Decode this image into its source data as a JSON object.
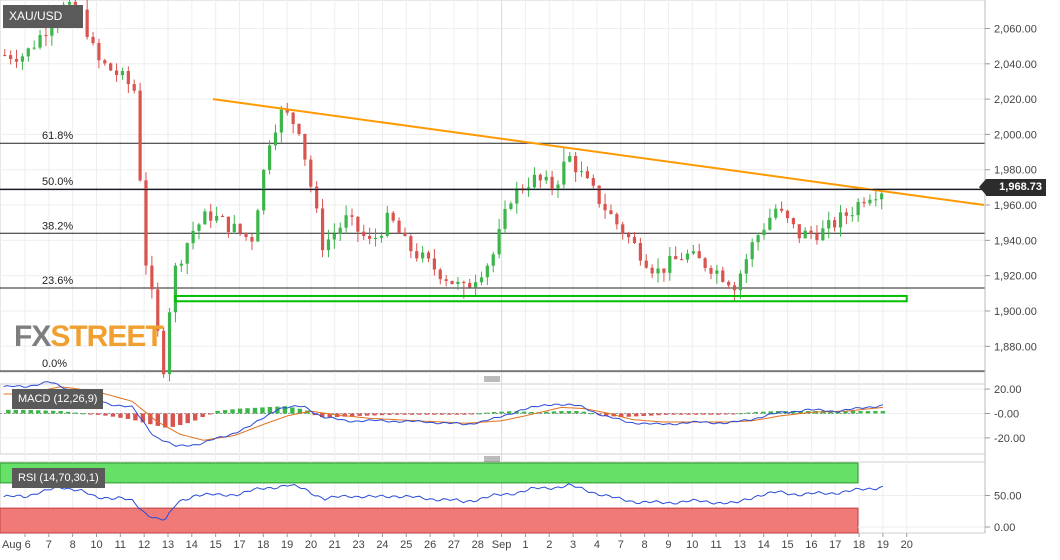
{
  "symbol": "XAU/USD",
  "last_price_label": "1,968.73",
  "logo": {
    "part1": "FX",
    "part2": "STREET"
  },
  "colors": {
    "up": "#3cb54a",
    "down": "#d9534f",
    "trend": "#ff9900",
    "support": "#00c000",
    "macd_line": "#2a4bd7",
    "signal_line": "#e07020",
    "rsi_line": "#2a4bd7"
  },
  "chart_data": [
    {
      "type": "candlestick",
      "title": "XAU/USD",
      "y_range": [
        1866,
        2075
      ],
      "y_ticks": [
        "2,060.00",
        "2,040.00",
        "2,020.00",
        "2,000.00",
        "1,980.00",
        "1,960.00",
        "1,940.00",
        "1,920.00",
        "1,900.00",
        "1,880.00"
      ],
      "y_tick_values": [
        2060,
        2040,
        2020,
        2000,
        1980,
        1960,
        1940,
        1920,
        1900,
        1880
      ],
      "x_labels": [
        "Aug 6",
        "7",
        "8",
        "10",
        "11",
        "12",
        "13",
        "14",
        "15",
        "17",
        "18",
        "19",
        "20",
        "21",
        "23",
        "24",
        "25",
        "26",
        "27",
        "28",
        "Sep",
        "1",
        "2",
        "3",
        "4",
        "7",
        "8",
        "9",
        "10",
        "11",
        "13",
        "14",
        "15",
        "16",
        "17",
        "18",
        "19",
        "20"
      ],
      "fib_levels": [
        {
          "label": "61.8%",
          "value": 1995
        },
        {
          "label": "50.0%",
          "value": 1969
        },
        {
          "label": "38.2%",
          "value": 1944
        },
        {
          "label": "23.6%",
          "value": 1913
        },
        {
          "label": "0.0%",
          "value": 1866
        }
      ],
      "trendline": [
        [
          1.5,
          2020
        ],
        [
          11.5,
          1960
        ]
      ],
      "support_zone": {
        "x": [
          6.3,
          37.0
        ],
        "y": [
          1905.5,
          1908.5
        ]
      },
      "anchors": [
        [
          0,
          2045
        ],
        [
          1,
          2062
        ],
        [
          1.6,
          2072
        ],
        [
          2.4,
          2068
        ],
        [
          3,
          2042
        ],
        [
          4,
          2033
        ],
        [
          4.6,
          2025
        ],
        [
          5.05,
          1930
        ],
        [
          5.4,
          1902
        ],
        [
          5.8,
          1866
        ],
        [
          6.2,
          1920
        ],
        [
          7,
          1945
        ],
        [
          7.7,
          1955
        ],
        [
          8.6,
          1948
        ],
        [
          9.5,
          1940
        ],
        [
          10.3,
          2000
        ],
        [
          10.8,
          2013
        ],
        [
          11.5,
          2004
        ],
        [
          12.5,
          1937
        ],
        [
          13.5,
          1952
        ],
        [
          14.5,
          1938
        ],
        [
          15.3,
          1953
        ],
        [
          16,
          1937
        ],
        [
          17,
          1926
        ],
        [
          18.4,
          1912
        ],
        [
          19.6,
          1930
        ],
        [
          20.4,
          1965
        ],
        [
          21.3,
          1975
        ],
        [
          22.2,
          1970
        ],
        [
          22.8,
          1988
        ],
        [
          23.6,
          1972
        ],
        [
          24.8,
          1950
        ],
        [
          25.7,
          1935
        ],
        [
          26.5,
          1922
        ],
        [
          27.7,
          1932
        ],
        [
          28.8,
          1925
        ],
        [
          29.8,
          1915
        ],
        [
          30.6,
          1940
        ],
        [
          31.5,
          1958
        ],
        [
          32.5,
          1943
        ],
        [
          33.5,
          1945
        ],
        [
          34.7,
          1957
        ],
        [
          35.3,
          1966
        ],
        [
          36,
          1969
        ]
      ],
      "extremes": [
        [
          1.6,
          2072
        ],
        [
          5.8,
          1866
        ],
        [
          11,
          2015
        ],
        [
          18.3,
          1907
        ],
        [
          22.6,
          1993
        ],
        [
          29.8,
          1906
        ]
      ]
    },
    {
      "type": "bar",
      "title": "MACD (12,26,9)",
      "y_range": [
        -30,
        30
      ],
      "y_ticks": [
        "20.00",
        "-0.00",
        "-20.00"
      ],
      "y_tick_values": [
        20,
        0,
        -20
      ],
      "macd_anchors": [
        [
          0,
          22
        ],
        [
          1,
          26
        ],
        [
          2,
          18
        ],
        [
          3.5,
          8
        ],
        [
          4.5,
          5
        ],
        [
          5.4,
          -18
        ],
        [
          6.3,
          -27
        ],
        [
          7.3,
          -25
        ],
        [
          8.5,
          -18
        ],
        [
          9.5,
          -10
        ],
        [
          10.6,
          4
        ],
        [
          11.7,
          6
        ],
        [
          12.5,
          -3
        ],
        [
          13.5,
          -6
        ],
        [
          15,
          -6
        ],
        [
          17,
          -7
        ],
        [
          18.5,
          -9
        ],
        [
          19.8,
          -4
        ],
        [
          20.8,
          3
        ],
        [
          22.2,
          8
        ],
        [
          23.3,
          6
        ],
        [
          24.3,
          -2
        ],
        [
          25.3,
          -7
        ],
        [
          26.5,
          -9
        ],
        [
          27.5,
          -8
        ],
        [
          28.5,
          -7
        ],
        [
          29.5,
          -8
        ],
        [
          30.4,
          -5
        ],
        [
          31.5,
          0
        ],
        [
          32.8,
          3
        ],
        [
          34,
          2
        ],
        [
          35,
          4
        ],
        [
          36,
          7
        ]
      ],
      "signal_anchors": [
        [
          0,
          16
        ],
        [
          1.5,
          22
        ],
        [
          3,
          18
        ],
        [
          4.5,
          10
        ],
        [
          5.5,
          -6
        ],
        [
          6.5,
          -17
        ],
        [
          7.5,
          -22
        ],
        [
          8.8,
          -18
        ],
        [
          10,
          -9
        ],
        [
          11,
          -2
        ],
        [
          12,
          2
        ],
        [
          13,
          -1
        ],
        [
          14.5,
          -4
        ],
        [
          16.5,
          -6
        ],
        [
          18.5,
          -8
        ],
        [
          20,
          -6
        ],
        [
          21.2,
          -1
        ],
        [
          22.5,
          5
        ],
        [
          23.5,
          4
        ],
        [
          24.5,
          0
        ],
        [
          25.5,
          -5
        ],
        [
          26.8,
          -7
        ],
        [
          28,
          -7
        ],
        [
          29.5,
          -7
        ],
        [
          30.5,
          -6
        ],
        [
          31.7,
          -2
        ],
        [
          33,
          1
        ],
        [
          34.5,
          2
        ],
        [
          36,
          5
        ]
      ],
      "histogram_anchors": [
        [
          0,
          3
        ],
        [
          1.5,
          2
        ],
        [
          2.5,
          0
        ],
        [
          3.5,
          -2
        ],
        [
          4.5,
          -5
        ],
        [
          5.3,
          -9
        ],
        [
          6,
          -12
        ],
        [
          7,
          -7
        ],
        [
          8,
          2
        ],
        [
          9,
          4
        ],
        [
          10,
          5
        ],
        [
          10.9,
          6
        ],
        [
          11.8,
          3
        ],
        [
          12.3,
          -3
        ],
        [
          13,
          -3
        ],
        [
          14,
          -2
        ],
        [
          15.5,
          -1
        ],
        [
          17,
          -1
        ],
        [
          18.5,
          -1
        ],
        [
          19.5,
          1
        ],
        [
          20.5,
          2
        ],
        [
          21.5,
          1
        ],
        [
          22.5,
          2
        ],
        [
          23.3,
          2
        ],
        [
          24.1,
          -1
        ],
        [
          25,
          -3
        ],
        [
          26,
          -2
        ],
        [
          27,
          -1
        ],
        [
          28.2,
          -1
        ],
        [
          29.3,
          -1
        ],
        [
          30.5,
          1
        ],
        [
          31.5,
          2
        ],
        [
          33,
          2
        ],
        [
          34.5,
          2
        ],
        [
          36,
          2
        ]
      ]
    },
    {
      "type": "line",
      "title": "RSI (14,70,30,1)",
      "y_range": [
        0,
        100
      ],
      "y_ticks": [
        "50.00",
        "0.00"
      ],
      "y_tick_values": [
        50,
        0
      ],
      "overbought": 70,
      "oversold": 30,
      "rsi_anchors": [
        [
          0,
          48
        ],
        [
          0.5,
          55
        ],
        [
          1.5,
          62
        ],
        [
          2.3,
          60
        ],
        [
          3,
          45
        ],
        [
          4,
          48
        ],
        [
          4.5,
          40
        ],
        [
          5,
          22
        ],
        [
          5.5,
          15
        ],
        [
          5.9,
          12
        ],
        [
          6.4,
          38
        ],
        [
          7.2,
          52
        ],
        [
          8.2,
          50
        ],
        [
          9,
          53
        ],
        [
          10.1,
          62
        ],
        [
          11,
          66
        ],
        [
          11.7,
          61
        ],
        [
          12.6,
          44
        ],
        [
          13.6,
          50
        ],
        [
          14.6,
          47
        ],
        [
          15.5,
          50
        ],
        [
          16.5,
          46
        ],
        [
          17.5,
          44
        ],
        [
          18.4,
          40
        ],
        [
          19.5,
          48
        ],
        [
          20.5,
          54
        ],
        [
          21.3,
          60
        ],
        [
          22.2,
          63
        ],
        [
          22.8,
          66
        ],
        [
          23.6,
          58
        ],
        [
          24.8,
          45
        ],
        [
          25.7,
          40
        ],
        [
          26.7,
          38
        ],
        [
          27.8,
          41
        ],
        [
          28.8,
          40
        ],
        [
          29.8,
          37
        ],
        [
          30.7,
          50
        ],
        [
          31.6,
          55
        ],
        [
          32.5,
          52
        ],
        [
          33.5,
          53
        ],
        [
          34.7,
          57
        ],
        [
          35.4,
          61
        ],
        [
          36,
          64
        ]
      ]
    }
  ]
}
